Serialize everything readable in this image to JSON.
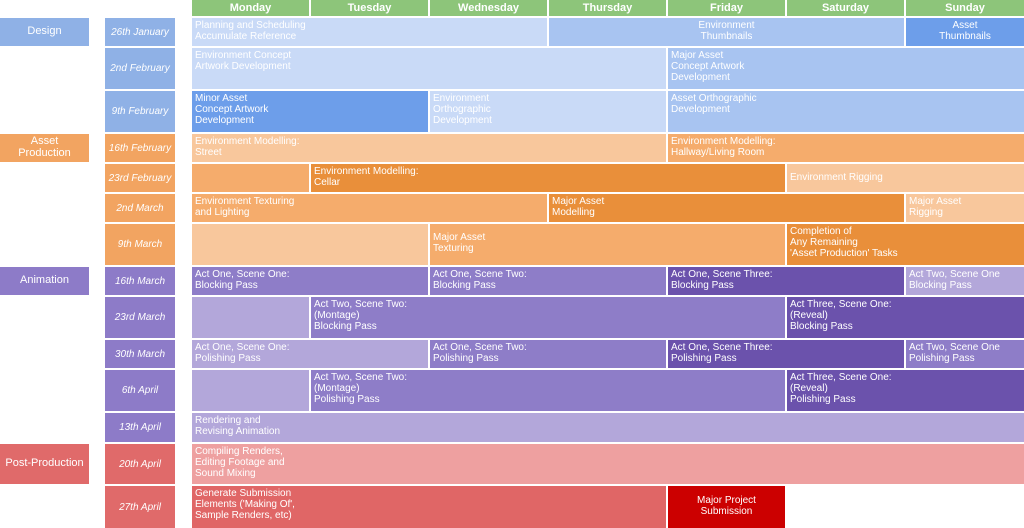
{
  "days": [
    "Monday",
    "Tuesday",
    "Wednesday",
    "Thursday",
    "Friday",
    "Saturday",
    "Sunday"
  ],
  "phases": [
    "Design",
    "Asset\nProduction",
    "Animation",
    "Post-Production"
  ],
  "weeks": [
    "26th January",
    "2nd February",
    "9th February",
    "16th February",
    "23rd February",
    "2nd March",
    "9th March",
    "16th March",
    "23rd March",
    "30th March",
    "6th April",
    "13th April",
    "20th April",
    "27th April"
  ],
  "tasks": [
    "Planning and Scheduling\nAccumulate Reference",
    "Environment\nThumbnails",
    "Asset\nThumbnails",
    "Environment Concept\nArtwork Development",
    "Major Asset\nConcept Artwork\nDevelopment",
    "Minor Asset\nConcept Artwork\nDevelopment",
    "Environment\nOrthographic\nDevelopment",
    "Asset Orthographic\nDevelopment",
    "Environment Modelling:\nStreet",
    "Environment Modelling:\nHallway/Living Room",
    "",
    "Environment Modelling:\nCellar",
    "Environment Rigging",
    "Environment Texturing\nand Lighting",
    "Major Asset\nModelling",
    "Major Asset\nRigging",
    "",
    "Major Asset\nTexturing",
    "Completion of\nAny Remaining\n'Asset Production' Tasks",
    "Act One, Scene One:\nBlocking Pass",
    "Act One, Scene Two:\nBlocking Pass",
    "Act One, Scene Three:\nBlocking Pass",
    "Act Two, Scene One\nBlocking Pass",
    "",
    "Act Two, Scene Two:\n(Montage)\nBlocking Pass",
    "Act Three, Scene One:\n(Reveal)\nBlocking Pass",
    "Act One, Scene One:\nPolishing Pass",
    "Act One, Scene Two:\nPolishing Pass",
    "Act One, Scene Three:\nPolishing Pass",
    "Act Two, Scene One\nPolishing Pass",
    "",
    "Act Two, Scene Two:\n(Montage)\nPolishing Pass",
    "Act Three, Scene One:\n(Reveal)\nPolishing Pass",
    "Rendering and\nRevising Animation",
    "Compiling Renders,\nEditing Footage and\nSound Mixing",
    "Generate Submission\nElements ('Making Of',\nSample Renders, etc)",
    "Major Project\nSubmission"
  ],
  "colors": {
    "header": "#8dc57a",
    "design_phase": "#8fb1e6",
    "asset_phase": "#f2a461",
    "animation_phase": "#8d7bc8",
    "post_phase": "#e06a6a",
    "design_light": "#c9daf7",
    "design_mid": "#a8c4f1",
    "design_dark": "#6d9eea",
    "asset_light": "#f8c79c",
    "asset_mid": "#f5ac6c",
    "asset_dark": "#e98f3a",
    "anim_light": "#b3a7da",
    "anim_mid": "#8e7dc8",
    "anim_dark": "#6b52ac",
    "post_light": "#eea0a0",
    "post_mid": "#e06666",
    "post_dark": "#cc0000"
  }
}
